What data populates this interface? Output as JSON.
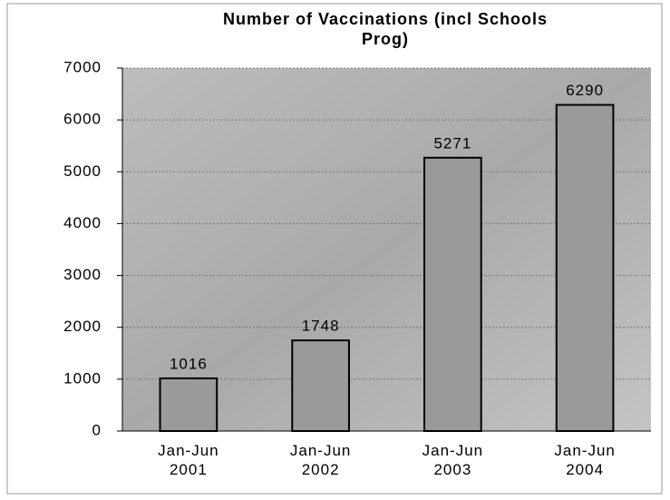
{
  "chart_data": {
    "type": "bar",
    "title": "Number of Vaccinations (incl Schools Prog)",
    "categories": [
      "Jan-Jun 2001",
      "Jan-Jun 2002",
      "Jan-Jun 2003",
      "Jan-Jun 2004"
    ],
    "values": [
      1016,
      1748,
      5271,
      6290
    ],
    "color": "#9a9a9a",
    "ylim": [
      0,
      7000
    ],
    "yticks": [
      0,
      1000,
      2000,
      3000,
      4000,
      5000,
      6000,
      7000
    ],
    "grid": true
  }
}
